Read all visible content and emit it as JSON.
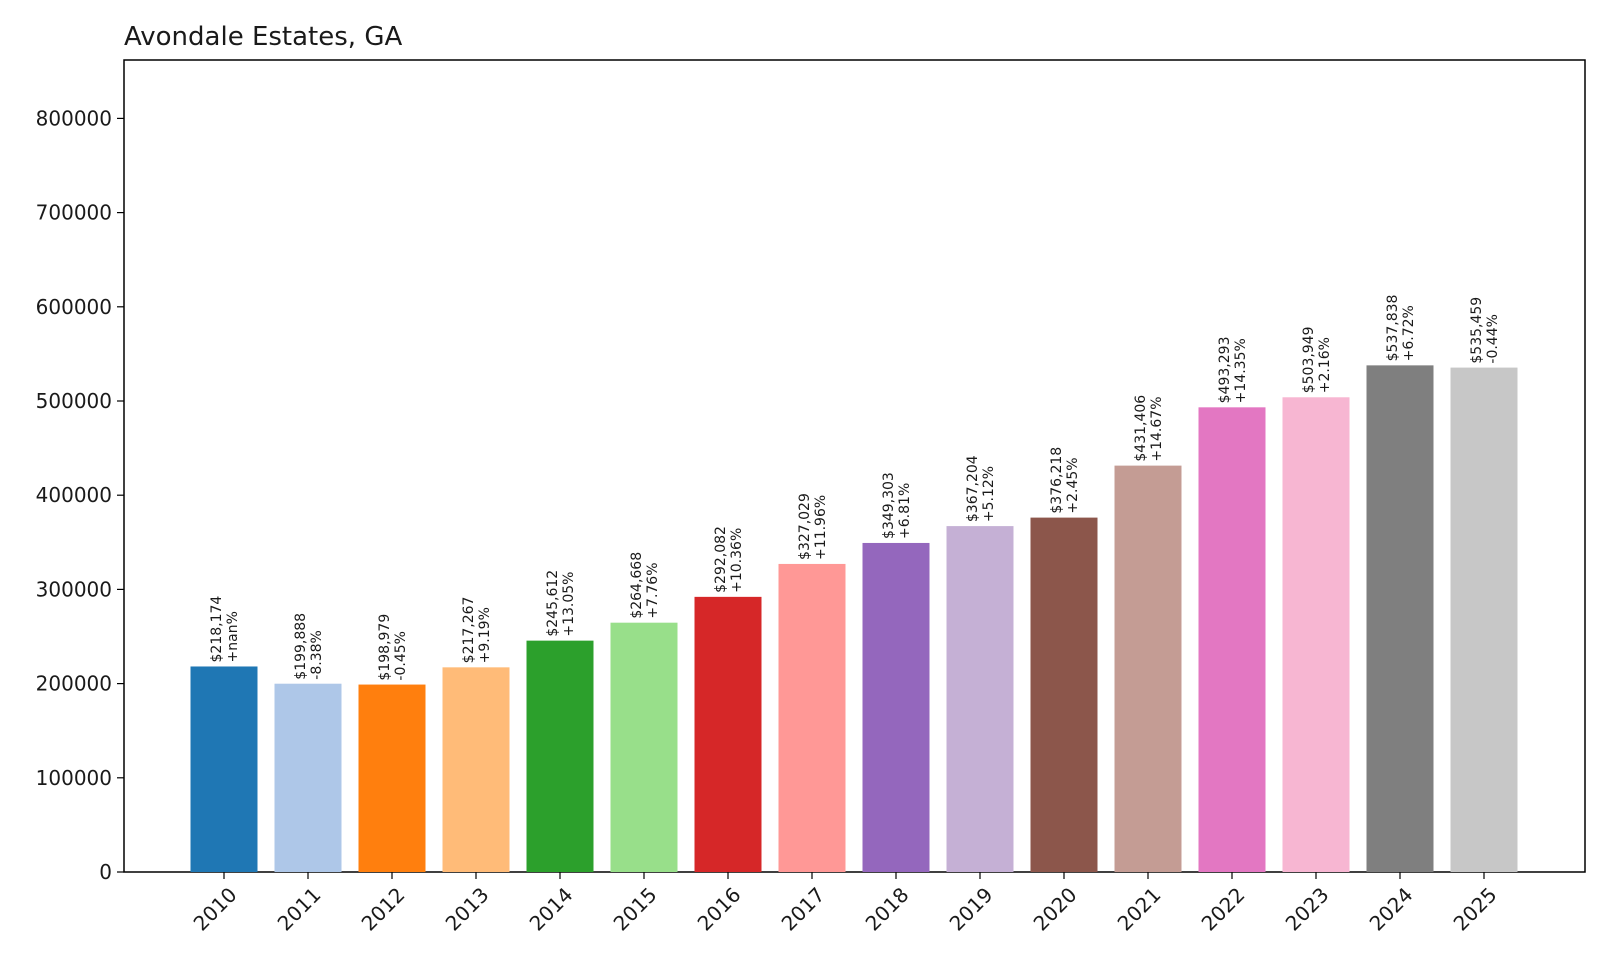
{
  "chart_data": {
    "type": "bar",
    "title": "Avondale Estates, GA",
    "xlabel": "",
    "ylabel": "",
    "categories": [
      "2010",
      "2011",
      "2012",
      "2013",
      "2014",
      "2015",
      "2016",
      "2017",
      "2018",
      "2019",
      "2020",
      "2021",
      "2022",
      "2023",
      "2024",
      "2025"
    ],
    "values": [
      218174,
      199888,
      198979,
      217267,
      245612,
      264668,
      292082,
      327029,
      349303,
      367204,
      376218,
      431406,
      493293,
      503949,
      537838,
      535459
    ],
    "value_labels": [
      "$218,174",
      "$199,888",
      "$198,979",
      "$217,267",
      "$245,612",
      "$264,668",
      "$292,082",
      "$327,029",
      "$349,303",
      "$367,204",
      "$376,218",
      "$431,406",
      "$493,293",
      "$503,949",
      "$537,838",
      "$535,459"
    ],
    "change_labels": [
      "+nan%",
      "-8.38%",
      "-0.45%",
      "+9.19%",
      "+13.05%",
      "+7.76%",
      "+10.36%",
      "+11.96%",
      "+6.81%",
      "+5.12%",
      "+2.45%",
      "+14.67%",
      "+14.35%",
      "+2.16%",
      "+6.72%",
      "-0.44%"
    ],
    "colors": [
      "#1f77b4",
      "#aec7e8",
      "#ff7f0e",
      "#ffbb78",
      "#2ca02c",
      "#98df8a",
      "#d62728",
      "#ff9896",
      "#9467bd",
      "#c5b0d5",
      "#8c564b",
      "#c49c94",
      "#e377c2",
      "#f7b6d2",
      "#7f7f7f",
      "#c7c7c7"
    ],
    "ylim": [
      0,
      862000
    ],
    "yticks": [
      0,
      100000,
      200000,
      300000,
      400000,
      500000,
      600000,
      700000,
      800000
    ],
    "ytick_labels": [
      "0",
      "100000",
      "200000",
      "300000",
      "400000",
      "500000",
      "600000",
      "700000",
      "800000"
    ],
    "grid": false,
    "legend": "none"
  }
}
